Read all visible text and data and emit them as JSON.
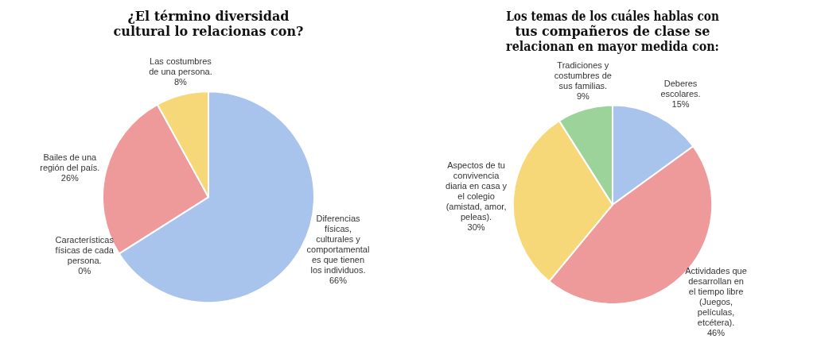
{
  "chart_data": [
    {
      "type": "pie",
      "title": "¿El término diversidad\ncultural lo relacionas con?",
      "legend": false,
      "categories": [
        "Diferencias\nfísicas,\nculturales y\ncomportamental\nes que tienen\nlos individuos.",
        "Características\nfísicas de cada\npersona.",
        "Bailes de una\nregión del país.",
        "Las costumbres\nde una persona."
      ],
      "values": [
        66,
        0,
        26,
        8
      ],
      "value_labels": [
        "66%",
        "0%",
        "26%",
        "8%"
      ],
      "colors": [
        "#a9c4ec",
        "#ee9a9a",
        "#ee9a9a",
        "#f6d878"
      ]
    },
    {
      "type": "pie",
      "title": "Los temas de los cuáles hablas con\ntus compañeros de clase se\nrelacionan en mayor medida con:",
      "legend": false,
      "categories": [
        "Deberes\nescolares.",
        "Actividades que\ndesarrollan en\nel tiempo libre\n(Juegos,\npelículas,\netcétera).",
        "Aspectos de tu\nconvivencia\ndiaria en casa y\nel colegio\n(amistad, amor,\npeleas).",
        "Tradiciones y\ncostumbres de\nsus familias."
      ],
      "values": [
        15,
        46,
        30,
        9
      ],
      "value_labels": [
        "15%",
        "46%",
        "30%",
        "9%"
      ],
      "colors": [
        "#a9c4ec",
        "#ee9a9a",
        "#f6d878",
        "#9bd39b"
      ]
    }
  ]
}
